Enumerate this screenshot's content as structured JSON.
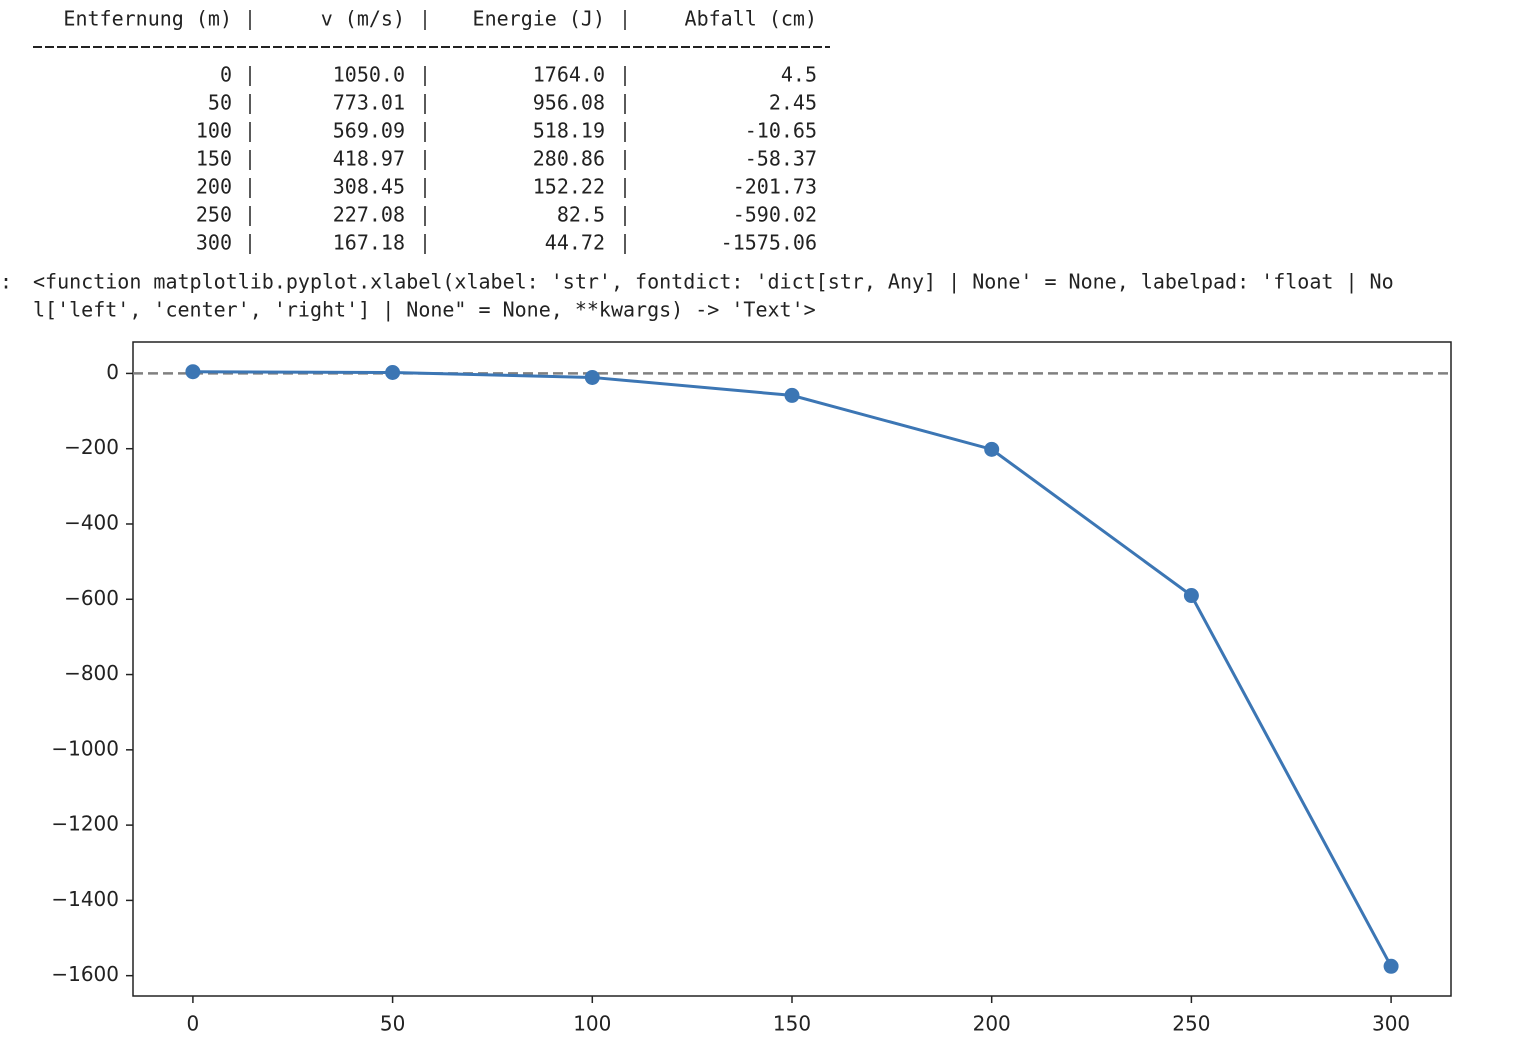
{
  "prompt": ":",
  "table": {
    "columns": [
      "Entfernung (m)",
      "v (m/s)",
      "Energie (J)",
      "Abfall (cm)"
    ],
    "rows": [
      [
        "0",
        "1050.0",
        "1764.0",
        "4.5"
      ],
      [
        "50",
        "773.01",
        "956.08",
        "2.45"
      ],
      [
        "100",
        "569.09",
        "518.19",
        "-10.65"
      ],
      [
        "150",
        "418.97",
        "280.86",
        "-58.37"
      ],
      [
        "200",
        "308.45",
        "152.22",
        "-201.73"
      ],
      [
        "250",
        "227.08",
        "82.5",
        "-590.02"
      ],
      [
        "300",
        "167.18",
        "44.72",
        "-1575.06"
      ]
    ]
  },
  "repr": {
    "lines": [
      "<function matplotlib.pyplot.xlabel(xlabel: 'str', fontdict: 'dict[str, Any] | None' = None, labelpad: 'float | No",
      "l['left', 'center', 'right'] | None\" = None, **kwargs) -> 'Text'>"
    ]
  },
  "chart_data": {
    "type": "line",
    "x": [
      0,
      50,
      100,
      150,
      200,
      250,
      300
    ],
    "values": [
      4.5,
      2.45,
      -10.65,
      -58.37,
      -201.73,
      -590.02,
      -1575.06
    ],
    "color": "#3c76b4",
    "markers": true,
    "xlim": [
      -15,
      315
    ],
    "ylim": [
      -1654,
      83.5
    ],
    "xticks": [
      0,
      50,
      100,
      150,
      200,
      250,
      300
    ],
    "yticks": [
      {
        "value": -1600,
        "label": "−1600"
      },
      {
        "value": -1400,
        "label": "−1400"
      },
      {
        "value": -1200,
        "label": "−1200"
      },
      {
        "value": -1000,
        "label": "−1000"
      },
      {
        "value": -800,
        "label": "−800"
      },
      {
        "value": -600,
        "label": "−600"
      },
      {
        "value": -400,
        "label": "−400"
      },
      {
        "value": -200,
        "label": "−200"
      },
      0
    ],
    "hline": 0,
    "hline_color": "#808080"
  }
}
